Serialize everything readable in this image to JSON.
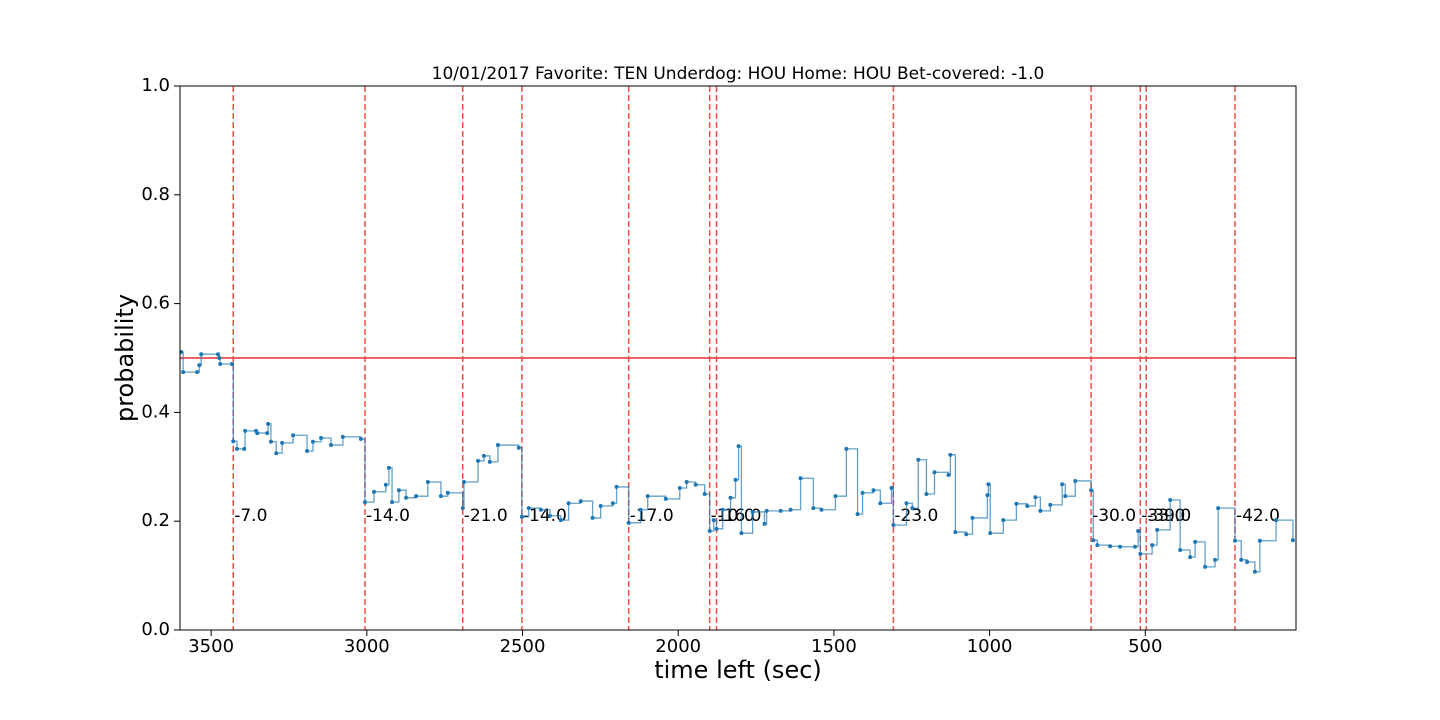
{
  "chart_data": {
    "type": "step",
    "title": "10/01/2017 Favorite: TEN Underdog: HOU Home: HOU Bet-covered: -1.0",
    "x_label": "time left (sec)",
    "y_label": "probability",
    "xlim": [
      3600,
      16
    ],
    "ylim": [
      0,
      1
    ],
    "xticks": [
      3500,
      3000,
      2500,
      2000,
      1500,
      1000,
      500
    ],
    "yticks": [
      {
        "value": 0,
        "label": "0.0"
      },
      0.2,
      0.4,
      0.6,
      0.8,
      {
        "value": 1,
        "label": "1.0"
      }
    ],
    "hline": {
      "value": 0.5,
      "color": "#e8312f"
    },
    "event_color": "#f0504a",
    "events": [
      {
        "x": 3429,
        "label": "-7.0"
      },
      {
        "x": 3006,
        "label": "-14.0"
      },
      {
        "x": 2692,
        "label": "-21.0"
      },
      {
        "x": 2502,
        "label": "-14.0"
      },
      {
        "x": 2159,
        "label": "-17.0"
      },
      {
        "x": 1899,
        "label": "-10.0"
      },
      {
        "x": 1877,
        "label": "-16.0"
      },
      {
        "x": 1309,
        "label": "-23.0"
      },
      {
        "x": 674,
        "label": "-30.0"
      },
      {
        "x": 516,
        "label": "-33.0"
      },
      {
        "x": 497,
        "label": "-39.0"
      },
      {
        "x": 212,
        "label": "-42.0"
      }
    ],
    "series": [
      {
        "color": "#1f77b4",
        "x": [
          3596,
          3590,
          3545,
          3538,
          3532,
          3478,
          3474,
          3471,
          3433,
          3429,
          3417,
          3394,
          3391,
          3356,
          3352,
          3320,
          3317,
          3308,
          3291,
          3272,
          3237,
          3192,
          3173,
          3147,
          3115,
          3077,
          3019,
          3006,
          2977,
          2939,
          2929,
          2919,
          2897,
          2874,
          2842,
          2804,
          2762,
          2740,
          2692,
          2688,
          2643,
          2624,
          2605,
          2579,
          2512,
          2502,
          2480,
          2441,
          2412,
          2377,
          2352,
          2313,
          2275,
          2249,
          2210,
          2198,
          2159,
          2121,
          2098,
          2040,
          1995,
          1973,
          1944,
          1915,
          1899,
          1886,
          1877,
          1857,
          1832,
          1816,
          1806,
          1797,
          1761,
          1723,
          1716,
          1671,
          1639,
          1607,
          1566,
          1540,
          1495,
          1460,
          1424,
          1408,
          1373,
          1351,
          1315,
          1309,
          1267,
          1248,
          1229,
          1203,
          1177,
          1132,
          1126,
          1110,
          1075,
          1055,
          1007,
          1004,
          998,
          956,
          914,
          879,
          853,
          837,
          805,
          767,
          757,
          725,
          674,
          667,
          654,
          613,
          581,
          533,
          523,
          516,
          478,
          462,
          420,
          388,
          356,
          340,
          308,
          276,
          266,
          212,
          192,
          173,
          148,
          132,
          80,
          26
        ],
        "values": [
          0.511,
          0.474,
          0.474,
          0.487,
          0.507,
          0.507,
          0.5,
          0.489,
          0.489,
          0.347,
          0.333,
          0.333,
          0.366,
          0.366,
          0.362,
          0.362,
          0.379,
          0.346,
          0.325,
          0.344,
          0.358,
          0.329,
          0.346,
          0.353,
          0.34,
          0.355,
          0.351,
          0.235,
          0.254,
          0.267,
          0.298,
          0.235,
          0.257,
          0.243,
          0.246,
          0.272,
          0.246,
          0.252,
          0.224,
          0.272,
          0.311,
          0.32,
          0.309,
          0.34,
          0.335,
          0.208,
          0.224,
          0.221,
          0.21,
          0.202,
          0.233,
          0.237,
          0.206,
          0.228,
          0.233,
          0.263,
          0.197,
          0.221,
          0.246,
          0.241,
          0.261,
          0.272,
          0.267,
          0.25,
          0.182,
          0.202,
          0.186,
          0.221,
          0.243,
          0.276,
          0.338,
          0.178,
          0.217,
          0.195,
          0.219,
          0.219,
          0.221,
          0.279,
          0.224,
          0.221,
          0.246,
          0.333,
          0.213,
          0.252,
          0.257,
          0.233,
          0.261,
          0.193,
          0.233,
          0.224,
          0.313,
          0.25,
          0.29,
          0.285,
          0.322,
          0.18,
          0.176,
          0.206,
          0.248,
          0.268,
          0.178,
          0.202,
          0.232,
          0.228,
          0.244,
          0.219,
          0.23,
          0.268,
          0.246,
          0.274,
          0.257,
          0.165,
          0.156,
          0.154,
          0.153,
          0.153,
          0.182,
          0.14,
          0.156,
          0.184,
          0.239,
          0.147,
          0.134,
          0.162,
          0.116,
          0.129,
          0.224,
          0.164,
          0.129,
          0.125,
          0.107,
          0.164,
          0.202,
          0.165
        ]
      }
    ]
  }
}
